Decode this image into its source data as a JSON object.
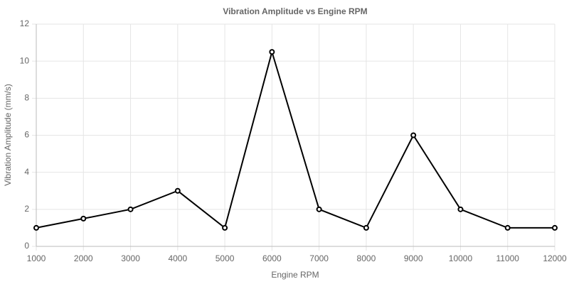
{
  "chart_data": {
    "type": "line",
    "title": "Vibration Amplitude vs Engine RPM",
    "x_label": "Engine RPM",
    "y_label": "Vibration Amplitude (mm/s)",
    "x": [
      1000,
      2000,
      3000,
      4000,
      5000,
      6000,
      7000,
      8000,
      9000,
      10000,
      11000,
      12000
    ],
    "values": [
      1,
      1.5,
      2,
      3,
      1,
      10.5,
      2,
      1,
      6,
      2,
      1,
      1
    ],
    "color": "#000000",
    "xlim": [
      1000,
      12000
    ],
    "xticks": [
      1000,
      2000,
      3000,
      4000,
      5000,
      6000,
      7000,
      8000,
      9000,
      10000,
      11000,
      12000
    ],
    "ylim": [
      0,
      12
    ],
    "yticks": [
      0,
      2,
      4,
      6,
      8,
      10,
      12
    ],
    "grid": true
  }
}
